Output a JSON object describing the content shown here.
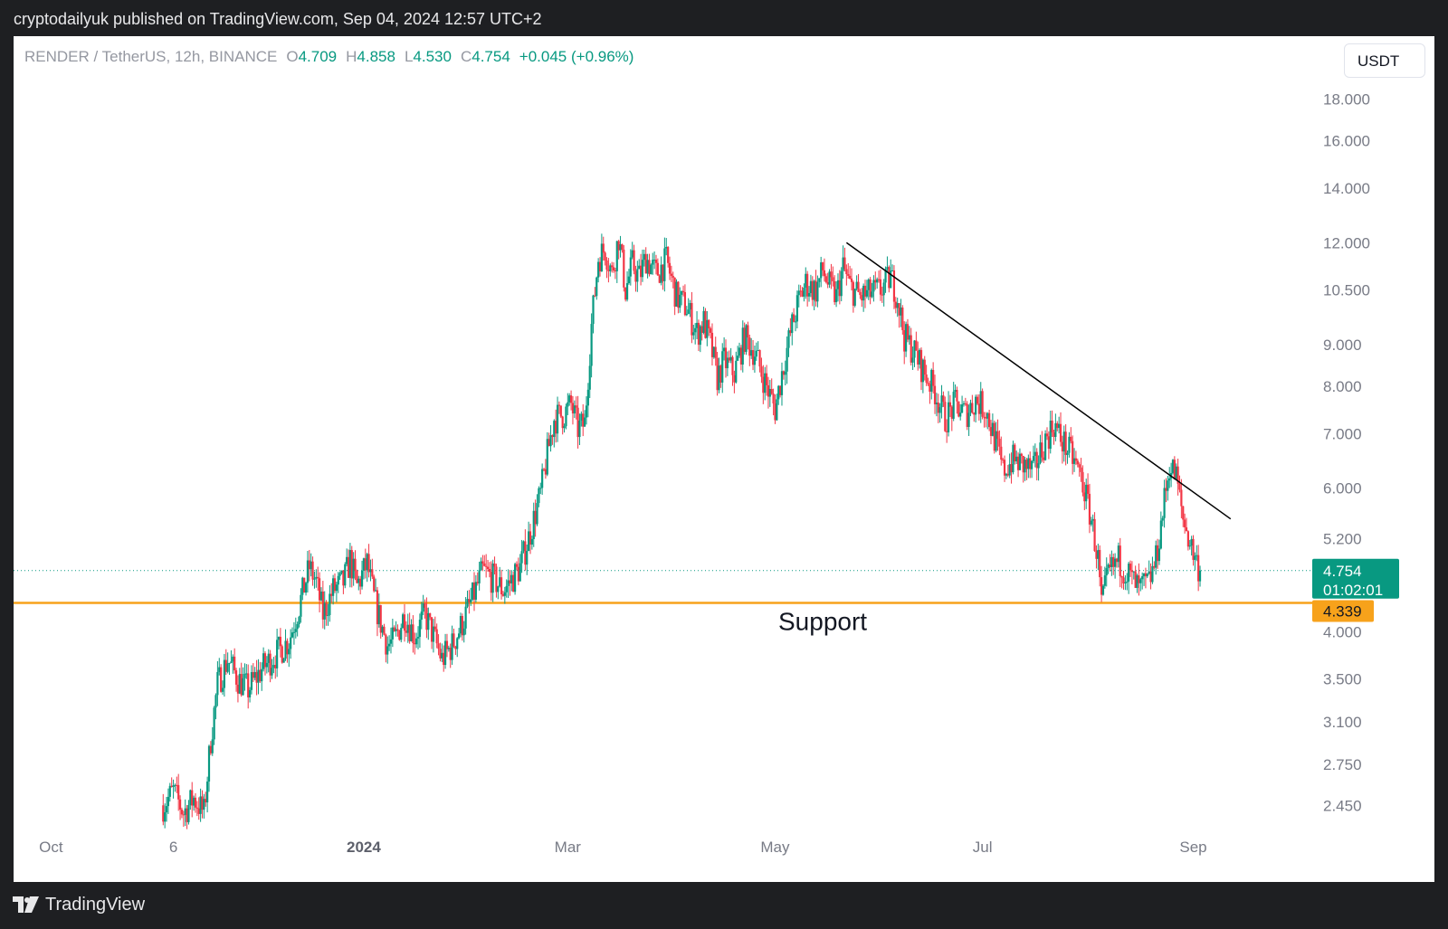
{
  "header": {
    "publish_line": "cryptodailyuk published on TradingView.com, Sep 04, 2024 12:57 UTC+2"
  },
  "legend": {
    "symbol": "RENDER / TetherUS, 12h, BINANCE",
    "o_label": "O",
    "o_value": "4.709",
    "h_label": "H",
    "h_value": "4.858",
    "l_label": "L",
    "l_value": "4.530",
    "c_label": "C",
    "c_value": "4.754",
    "change": "+0.045 (+0.96%)"
  },
  "currency_button": "USDT",
  "price_tags": {
    "last_price": "4.754",
    "countdown": "01:02:01",
    "support_price": "4.339"
  },
  "annotation": {
    "support_label": "Support"
  },
  "footer": {
    "brand": "TradingView"
  },
  "colors": {
    "up": "#089981",
    "down": "#f23645",
    "support": "#f7a21b",
    "trendline": "#000000",
    "last_price": "#089981"
  },
  "chart_data": {
    "type": "candlestick",
    "interval": "12h",
    "y_scale": "log",
    "y_ticks": [
      2.45,
      2.75,
      3.1,
      3.5,
      4.0,
      5.2,
      6.0,
      7.0,
      8.0,
      9.0,
      10.5,
      12.0,
      14.0,
      16.0,
      18.0
    ],
    "y_tick_labels": [
      "2.450",
      "2.750",
      "3.100",
      "3.500",
      "4.000",
      "5.200",
      "6.000",
      "7.000",
      "8.000",
      "9.000",
      "10.500",
      "12.000",
      "14.000",
      "16.000",
      "18.000"
    ],
    "x_labels": [
      {
        "label": "Oct",
        "date": "2023-10-01",
        "bold": false
      },
      {
        "label": "6",
        "date": "2023-11-06",
        "bold": false
      },
      {
        "label": "2024",
        "date": "2024-01-01",
        "bold": true
      },
      {
        "label": "Mar",
        "date": "2024-03-01",
        "bold": false
      },
      {
        "label": "May",
        "date": "2024-05-01",
        "bold": false
      },
      {
        "label": "Jul",
        "date": "2024-07-01",
        "bold": false
      },
      {
        "label": "Sep",
        "date": "2024-09-01",
        "bold": false
      }
    ],
    "x_range": [
      "2023-09-20",
      "2024-10-06"
    ],
    "y_range": [
      2.3,
      21.5
    ],
    "closes": [
      {
        "date": "2023-11-03",
        "close": 2.45
      },
      {
        "date": "2023-11-06",
        "close": 2.55
      },
      {
        "date": "2023-11-09",
        "close": 2.4
      },
      {
        "date": "2023-11-12",
        "close": 2.5
      },
      {
        "date": "2023-11-15",
        "close": 2.4
      },
      {
        "date": "2023-11-17",
        "close": 2.95
      },
      {
        "date": "2023-11-19",
        "close": 3.45
      },
      {
        "date": "2023-11-22",
        "close": 3.7
      },
      {
        "date": "2023-11-25",
        "close": 3.5
      },
      {
        "date": "2023-11-28",
        "close": 3.4
      },
      {
        "date": "2023-12-02",
        "close": 3.6
      },
      {
        "date": "2023-12-06",
        "close": 3.75
      },
      {
        "date": "2023-12-10",
        "close": 3.9
      },
      {
        "date": "2023-12-13",
        "close": 4.3
      },
      {
        "date": "2023-12-16",
        "close": 4.8
      },
      {
        "date": "2023-12-18",
        "close": 4.6
      },
      {
        "date": "2023-12-20",
        "close": 4.2
      },
      {
        "date": "2023-12-23",
        "close": 4.5
      },
      {
        "date": "2023-12-26",
        "close": 4.6
      },
      {
        "date": "2023-12-28",
        "close": 4.9
      },
      {
        "date": "2023-12-30",
        "close": 4.55
      },
      {
        "date": "2024-01-02",
        "close": 4.85
      },
      {
        "date": "2024-01-04",
        "close": 4.4
      },
      {
        "date": "2024-01-06",
        "close": 4.1
      },
      {
        "date": "2024-01-08",
        "close": 3.85
      },
      {
        "date": "2024-01-10",
        "close": 3.9
      },
      {
        "date": "2024-01-13",
        "close": 4.2
      },
      {
        "date": "2024-01-16",
        "close": 3.95
      },
      {
        "date": "2024-01-19",
        "close": 4.2
      },
      {
        "date": "2024-01-22",
        "close": 3.9
      },
      {
        "date": "2024-01-24",
        "close": 3.7
      },
      {
        "date": "2024-01-27",
        "close": 3.85
      },
      {
        "date": "2024-01-30",
        "close": 4.1
      },
      {
        "date": "2024-02-02",
        "close": 4.4
      },
      {
        "date": "2024-02-05",
        "close": 4.75
      },
      {
        "date": "2024-02-08",
        "close": 4.65
      },
      {
        "date": "2024-02-11",
        "close": 4.5
      },
      {
        "date": "2024-02-13",
        "close": 4.6
      },
      {
        "date": "2024-02-16",
        "close": 4.8
      },
      {
        "date": "2024-02-19",
        "close": 5.3
      },
      {
        "date": "2024-02-22",
        "close": 5.9
      },
      {
        "date": "2024-02-24",
        "close": 6.6
      },
      {
        "date": "2024-02-26",
        "close": 7.3
      },
      {
        "date": "2024-02-29",
        "close": 7.4
      },
      {
        "date": "2024-03-02",
        "close": 7.6
      },
      {
        "date": "2024-03-04",
        "close": 7.1
      },
      {
        "date": "2024-03-06",
        "close": 7.2
      },
      {
        "date": "2024-03-08",
        "close": 9.5
      },
      {
        "date": "2024-03-10",
        "close": 11.5
      },
      {
        "date": "2024-03-12",
        "close": 11.8
      },
      {
        "date": "2024-03-14",
        "close": 11.0
      },
      {
        "date": "2024-03-16",
        "close": 12.2
      },
      {
        "date": "2024-03-18",
        "close": 10.5
      },
      {
        "date": "2024-03-20",
        "close": 11.3
      },
      {
        "date": "2024-03-22",
        "close": 10.9
      },
      {
        "date": "2024-03-24",
        "close": 11.5
      },
      {
        "date": "2024-03-27",
        "close": 11.0
      },
      {
        "date": "2024-03-30",
        "close": 11.4
      },
      {
        "date": "2024-04-02",
        "close": 10.3
      },
      {
        "date": "2024-04-05",
        "close": 10.0
      },
      {
        "date": "2024-04-08",
        "close": 9.3
      },
      {
        "date": "2024-04-10",
        "close": 9.6
      },
      {
        "date": "2024-04-12",
        "close": 9.0
      },
      {
        "date": "2024-04-14",
        "close": 8.2
      },
      {
        "date": "2024-04-16",
        "close": 8.6
      },
      {
        "date": "2024-04-19",
        "close": 8.3
      },
      {
        "date": "2024-04-22",
        "close": 9.2
      },
      {
        "date": "2024-04-25",
        "close": 8.8
      },
      {
        "date": "2024-04-28",
        "close": 8.1
      },
      {
        "date": "2024-05-01",
        "close": 7.5
      },
      {
        "date": "2024-05-03",
        "close": 8.3
      },
      {
        "date": "2024-05-06",
        "close": 9.5
      },
      {
        "date": "2024-05-08",
        "close": 10.2
      },
      {
        "date": "2024-05-10",
        "close": 10.7
      },
      {
        "date": "2024-05-13",
        "close": 10.5
      },
      {
        "date": "2024-05-15",
        "close": 11.1
      },
      {
        "date": "2024-05-17",
        "close": 10.6
      },
      {
        "date": "2024-05-19",
        "close": 10.3
      },
      {
        "date": "2024-05-21",
        "close": 11.2
      },
      {
        "date": "2024-05-23",
        "close": 10.6
      },
      {
        "date": "2024-05-26",
        "close": 10.3
      },
      {
        "date": "2024-05-29",
        "close": 10.4
      },
      {
        "date": "2024-06-01",
        "close": 10.5
      },
      {
        "date": "2024-06-04",
        "close": 10.9
      },
      {
        "date": "2024-06-06",
        "close": 10.3
      },
      {
        "date": "2024-06-08",
        "close": 9.2
      },
      {
        "date": "2024-06-11",
        "close": 8.8
      },
      {
        "date": "2024-06-14",
        "close": 8.3
      },
      {
        "date": "2024-06-17",
        "close": 7.9
      },
      {
        "date": "2024-06-20",
        "close": 7.3
      },
      {
        "date": "2024-06-23",
        "close": 7.6
      },
      {
        "date": "2024-06-26",
        "close": 7.4
      },
      {
        "date": "2024-06-29",
        "close": 7.7
      },
      {
        "date": "2024-07-02",
        "close": 7.5
      },
      {
        "date": "2024-07-05",
        "close": 6.8
      },
      {
        "date": "2024-07-07",
        "close": 6.3
      },
      {
        "date": "2024-07-10",
        "close": 6.5
      },
      {
        "date": "2024-07-13",
        "close": 6.4
      },
      {
        "date": "2024-07-16",
        "close": 6.3
      },
      {
        "date": "2024-07-19",
        "close": 6.8
      },
      {
        "date": "2024-07-22",
        "close": 7.2
      },
      {
        "date": "2024-07-24",
        "close": 6.9
      },
      {
        "date": "2024-07-27",
        "close": 6.6
      },
      {
        "date": "2024-07-30",
        "close": 6.2
      },
      {
        "date": "2024-08-02",
        "close": 5.5
      },
      {
        "date": "2024-08-04",
        "close": 4.9
      },
      {
        "date": "2024-08-05",
        "close": 4.3
      },
      {
        "date": "2024-08-07",
        "close": 4.7
      },
      {
        "date": "2024-08-10",
        "close": 4.9
      },
      {
        "date": "2024-08-13",
        "close": 4.7
      },
      {
        "date": "2024-08-16",
        "close": 4.5
      },
      {
        "date": "2024-08-19",
        "close": 4.6
      },
      {
        "date": "2024-08-21",
        "close": 4.9
      },
      {
        "date": "2024-08-23",
        "close": 5.6
      },
      {
        "date": "2024-08-25",
        "close": 6.4
      },
      {
        "date": "2024-08-27",
        "close": 6.2
      },
      {
        "date": "2024-08-29",
        "close": 5.5
      },
      {
        "date": "2024-09-01",
        "close": 5.0
      },
      {
        "date": "2024-09-03",
        "close": 4.75
      }
    ],
    "support_level": 4.339,
    "last_price": 4.754,
    "trendline": {
      "start": {
        "date": "2024-05-22",
        "price": 12.0
      },
      "end": {
        "date": "2024-09-12",
        "price": 5.5
      }
    }
  }
}
